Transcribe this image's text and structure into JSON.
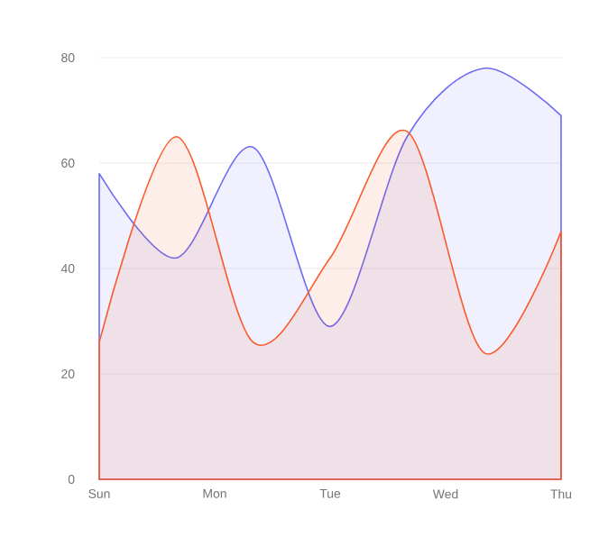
{
  "chart_data": {
    "type": "area",
    "categories": [
      "Sun",
      null,
      null,
      "Mon",
      null,
      null,
      "Tue",
      null,
      null,
      "Wed",
      null,
      null,
      "Thu"
    ],
    "ylim": [
      0,
      80
    ],
    "yticks": [
      0,
      20,
      40,
      60,
      80
    ],
    "grid": "y",
    "marker": "none",
    "line_style": "solid",
    "series": [
      {
        "color": "#6b6bf5",
        "values": [
          58,
          null,
          42,
          null,
          63,
          null,
          29,
          null,
          65,
          null,
          78,
          null,
          69
        ]
      },
      {
        "color": "#fa5a28",
        "values": [
          26,
          null,
          65,
          null,
          26,
          null,
          42,
          null,
          66,
          null,
          24,
          null,
          47
        ]
      }
    ]
  }
}
